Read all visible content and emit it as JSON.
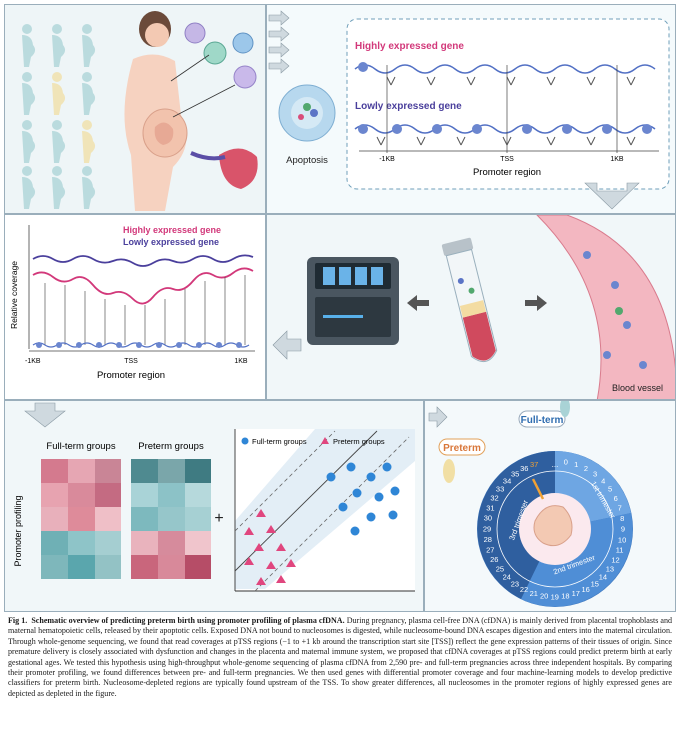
{
  "panel2": {
    "highly_label": "Highly expressed gene",
    "lowly_label": "Lowly expressed gene",
    "apoptosis": "Apoptosis",
    "tick_left": "-1KB",
    "tick_mid": "TSS",
    "tick_right": "1KB",
    "axis_title": "Promoter region"
  },
  "panel3": {
    "highly_label": "Highly expressed gene",
    "lowly_label": "Lowly expressed gene",
    "ylabel": "Relative coverage",
    "tick_left": "-1KB",
    "tick_mid": "TSS",
    "tick_right": "1KB",
    "xlabel": "Promoter region"
  },
  "panel4": {
    "blood_vessel": "Blood vessel"
  },
  "panel5": {
    "full_term_groups": "Full-term groups",
    "preterm_groups": "Preterm groups",
    "ylabel": "Promoter profiling",
    "plus": "+",
    "legend_full": "Full-term groups",
    "legend_pre": "Preterm groups"
  },
  "panel6": {
    "full_term": "Full-term",
    "preterm": "Preterm",
    "weeks": [
      "0",
      "1",
      "2",
      "3",
      "4",
      "5",
      "6",
      "7",
      "8",
      "9",
      "10",
      "11",
      "12",
      "13",
      "14",
      "15",
      "16",
      "17",
      "18",
      "19",
      "20",
      "21",
      "22",
      "23",
      "24",
      "25",
      "26",
      "27",
      "28",
      "29",
      "30",
      "31",
      "32",
      "33",
      "34",
      "35",
      "36",
      "37"
    ],
    "dots": "...",
    "tri1": "1st trimester",
    "tri2": "2nd trimester",
    "tri3": "3rd trimester"
  },
  "caption": {
    "label": "Fig 1.",
    "title": "Schematic overview of predicting preterm birth using promoter profiling of plasma cfDNA.",
    "body": "During pregnancy, plasma cell-free DNA (cfDNA) is mainly derived from placental trophoblasts and maternal hematopoietic cells, released by their apoptotic cells. Exposed DNA not bound to nucleosomes is digested, while nucleosome-bound DNA escapes digestion and enters into the maternal circulation. Through whole-genome sequencing, we found that read coverages at pTSS regions (−1 to +1 kb around the transcription start site [TSS]) reflect the gene expression patterns of their tissues of origin. Since premature delivery is closely associated with dysfunction and changes in the placenta and maternal immune system, we proposed that cfDNA coverages at pTSS regions could predict preterm birth at early gestational ages. We tested this hypothesis using high-throughput whole-genome sequencing of plasma cfDNA from 2,590 pre- and full-term pregnancies across three independent hospitals. By comparing their promoter profiling, we found differences between pre- and full-term pregnancies. We then used genes with differential promoter coverage and four machine-learning models to develop predictive classifiers for preterm birth. Nucleosome-depleted regions are typically found upstream of the TSS. To show greater differences, all nucleosomes in the promoter regions of highly expressed genes are depicted as depleted in the figure."
  },
  "colors": {
    "highly": "#d2387a",
    "lowly": "#4a3f9c",
    "full_term": "#2f86d6",
    "preterm": "#e0467e"
  }
}
